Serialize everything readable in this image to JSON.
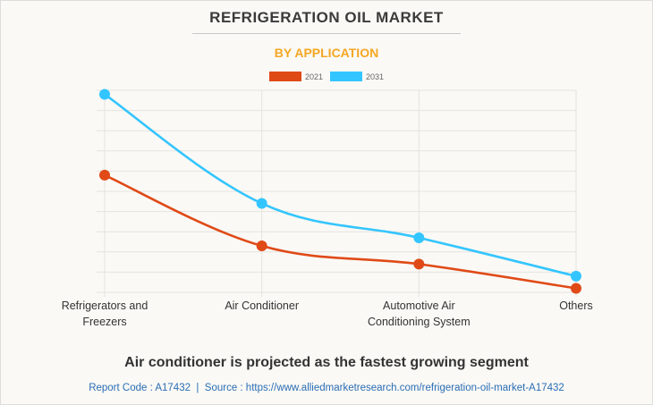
{
  "title": "REFRIGERATION OIL MARKET",
  "subtitle": "BY APPLICATION",
  "headline": "Air conditioner is projected as the fastest growing segment",
  "footer": {
    "report_code": "Report Code : A17432",
    "separator": "|",
    "source": "Source : https://www.alliedmarketresearch.com/refrigeration-oil-market-A17432"
  },
  "colors": {
    "series_2021": "#e04a17",
    "series_2031": "#33c5ff",
    "title": "#3a3a3a",
    "subtitle": "#f5a623",
    "footer_link": "#2a6db5",
    "grid": "#e4e3df"
  },
  "chart_data": {
    "type": "line",
    "title": "REFRIGERATION OIL MARKET",
    "subtitle": "BY APPLICATION",
    "xlabel": "",
    "ylabel": "",
    "categories": [
      "Refrigerators and Freezers",
      "Air Conditioner",
      "Automotive Air Conditioning System",
      "Others"
    ],
    "category_lines": [
      [
        "Refrigerators and",
        "Freezers"
      ],
      [
        "Air Conditioner"
      ],
      [
        "Automotive Air",
        "Conditioning System"
      ],
      [
        "Others"
      ]
    ],
    "series": [
      {
        "name": "2021",
        "color": "#e04a17",
        "values": [
          5.8,
          2.3,
          1.4,
          0.2
        ]
      },
      {
        "name": "2031",
        "color": "#33c5ff",
        "values": [
          9.8,
          4.4,
          2.7,
          0.8
        ]
      }
    ],
    "ylim": [
      0,
      10
    ],
    "y_ticks_count": 10,
    "y_tick_labels_visible": false,
    "grid": true,
    "legend": "top-center",
    "smooth": true
  }
}
